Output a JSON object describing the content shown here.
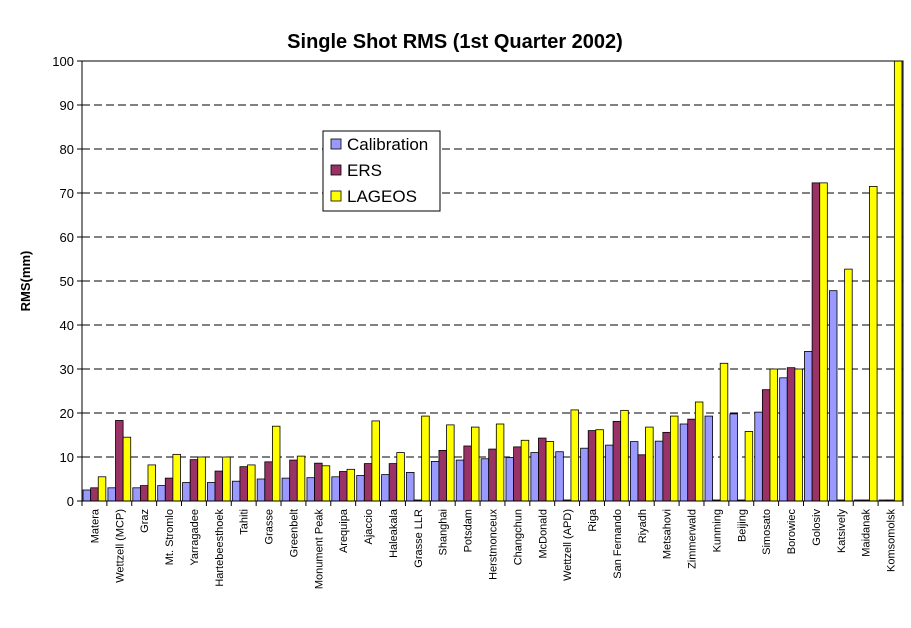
{
  "chart_data": {
    "type": "bar",
    "title": "Single Shot RMS (1st Quarter 2002)",
    "xlabel": "",
    "ylabel": "RMS(mm)",
    "ylim": [
      0,
      100
    ],
    "yticks": [
      0,
      10,
      20,
      30,
      40,
      50,
      60,
      70,
      80,
      90,
      100
    ],
    "grid": "horizontal dashed",
    "legend_position": "upper-left inside plot",
    "categories": [
      "Matera",
      "Wettzell (MCP)",
      "Graz",
      "Mt. Stromlo",
      "Yarragadee",
      "Hartebeesthoek",
      "Tahiti",
      "Grasse",
      "Greenbelt",
      "Monument Peak",
      "Arequipa",
      "Ajaccio",
      "Haleakala",
      "Grasse LLR",
      "Shanghai",
      "Potsdam",
      "Herstmonceux",
      "Changchun",
      "McDonald",
      "Wettzell (APD)",
      "Riga",
      "San Fernando",
      "Riyadh",
      "Metsahovi",
      "Zimmerwald",
      "Kunming",
      "Beijing",
      "Simosato",
      "Borowiec",
      "Golosiv",
      "Katsively",
      "Maidanak",
      "Komsomolsk"
    ],
    "series": [
      {
        "name": "Calibration",
        "color": "#9999FF",
        "values": [
          2.5,
          3,
          3,
          3.5,
          4.2,
          4.2,
          4.5,
          5,
          5.2,
          5.3,
          5.5,
          5.8,
          6,
          6.5,
          9,
          9.3,
          9.6,
          9.9,
          11,
          11.2,
          12,
          12.7,
          13.5,
          13.6,
          17.5,
          19.3,
          19.8,
          20.2,
          28,
          34,
          47.8,
          0,
          0
        ]
      },
      {
        "name": "ERS",
        "color": "#993366",
        "values": [
          3,
          18.3,
          3.5,
          5.2,
          9.4,
          6.8,
          7.8,
          8.9,
          9.3,
          8.6,
          6.7,
          8.5,
          8.5,
          0,
          11.5,
          12.5,
          11.8,
          12.3,
          14.3,
          0,
          16,
          18.1,
          10.5,
          15.6,
          18.6,
          0,
          0,
          25.3,
          30.3,
          72.3,
          0,
          0,
          0
        ]
      },
      {
        "name": "LAGEOS",
        "color": "#FFFF00",
        "values": [
          5.5,
          14.5,
          8.2,
          10.6,
          10,
          10,
          8.2,
          17,
          10.2,
          8,
          7.2,
          18.2,
          11,
          19.3,
          17.3,
          16.8,
          17.5,
          13.8,
          13.5,
          20.7,
          16.2,
          20.6,
          16.8,
          19.3,
          22.5,
          31.3,
          15.8,
          30,
          30,
          72.3,
          52.7,
          71.5,
          100
        ]
      }
    ]
  }
}
